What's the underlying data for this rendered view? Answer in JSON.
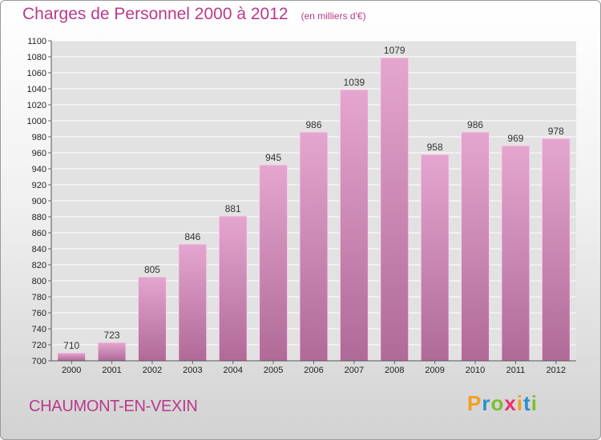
{
  "header": {
    "title": "Charges de Personnel 2000 à 2012",
    "subtitle": "(en milliers d'€)"
  },
  "footer": {
    "commune": "CHAUMONT-EN-VEXIN",
    "logo_text": "Proxiti",
    "logo_colors": [
      "#f0a020",
      "#2a8fd0",
      "#7abf30",
      "#e83070",
      "#f0a020",
      "#2a8fd0",
      "#7abf30"
    ]
  },
  "colors": {
    "bar_top": "#e4a6cf",
    "bar_bottom": "#b06a98",
    "accent": "#b83a8a",
    "grid": "#ffffff",
    "plot_background": "#e2e2e2"
  },
  "chart_data": {
    "type": "bar",
    "categories": [
      "2000",
      "2001",
      "2002",
      "2003",
      "2004",
      "2005",
      "2006",
      "2007",
      "2008",
      "2009",
      "2010",
      "2011",
      "2012"
    ],
    "values": [
      710,
      723,
      805,
      846,
      881,
      945,
      986,
      1039,
      1079,
      958,
      986,
      969,
      978
    ],
    "ylim": [
      700,
      1100
    ],
    "yticks": [
      700,
      720,
      740,
      760,
      780,
      800,
      820,
      840,
      860,
      880,
      900,
      920,
      940,
      960,
      980,
      1000,
      1020,
      1040,
      1060,
      1080,
      1100
    ],
    "grid": true,
    "data_labels": true
  }
}
